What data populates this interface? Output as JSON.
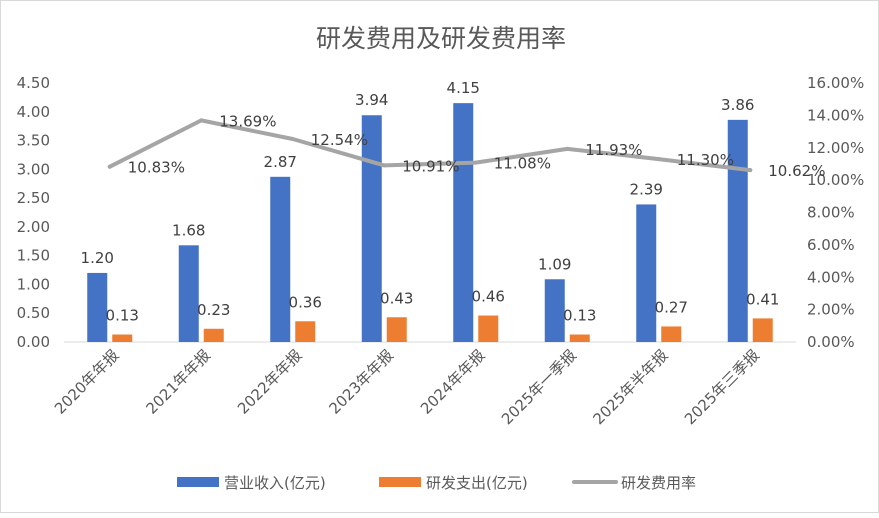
{
  "chart_data": {
    "type": "bar",
    "title": "研发费用及研发费用率",
    "categories": [
      "2020年年报",
      "2021年年报",
      "2022年年报",
      "2023年年报",
      "2024年年报",
      "2025年一季报",
      "2025年半年报",
      "2025年三季报"
    ],
    "series": [
      {
        "name": "营业收入(亿元)",
        "type": "bar",
        "axis": "left",
        "color": "#4472C4",
        "values": [
          1.2,
          1.68,
          2.87,
          3.94,
          4.15,
          1.09,
          2.39,
          3.86
        ],
        "labels": [
          "1.20",
          "1.68",
          "2.87",
          "3.94",
          "4.15",
          "1.09",
          "2.39",
          "3.86"
        ]
      },
      {
        "name": "研发支出(亿元)",
        "type": "bar",
        "axis": "left",
        "color": "#ED7D31",
        "values": [
          0.13,
          0.23,
          0.36,
          0.43,
          0.46,
          0.13,
          0.27,
          0.41
        ],
        "labels": [
          "0.13",
          "0.23",
          "0.36",
          "0.43",
          "0.46",
          "0.13",
          "0.27",
          "0.41"
        ]
      },
      {
        "name": "研发费用率",
        "type": "line",
        "axis": "right",
        "color": "#A5A5A5",
        "values": [
          10.83,
          13.69,
          12.54,
          10.91,
          11.08,
          11.93,
          11.3,
          10.62
        ],
        "labels": [
          "10.83%",
          "13.69%",
          "12.54%",
          "10.91%",
          "11.08%",
          "11.93%",
          "11.30%",
          "10.62%"
        ]
      }
    ],
    "y_left": {
      "min": 0,
      "max": 4.5,
      "ticks": [
        "0.00",
        "0.50",
        "1.00",
        "1.50",
        "2.00",
        "2.50",
        "3.00",
        "3.50",
        "4.00",
        "4.50"
      ]
    },
    "y_right": {
      "min": 0,
      "max": 16,
      "ticks": [
        "0.00%",
        "2.00%",
        "4.00%",
        "6.00%",
        "8.00%",
        "10.00%",
        "12.00%",
        "14.00%",
        "16.00%"
      ]
    },
    "grid": false,
    "legend_position": "bottom"
  }
}
